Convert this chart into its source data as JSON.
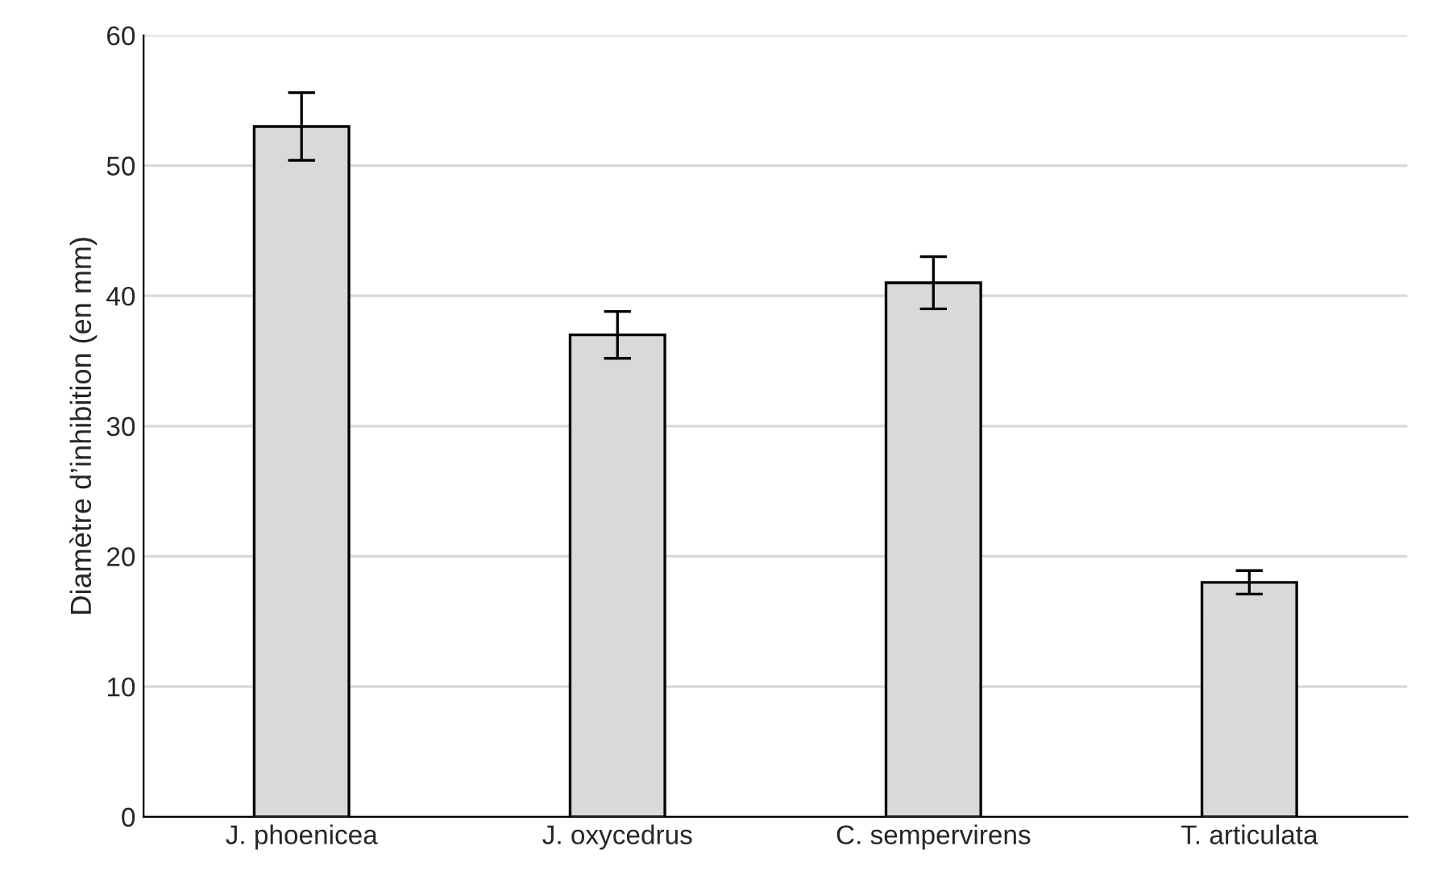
{
  "chart_data": {
    "type": "bar",
    "ylabel": "Diamètre d’inhibition (en mm)",
    "categories": [
      "J. phoenicea",
      "J. oxycedrus",
      "C. sempervirens",
      "T. articulata"
    ],
    "values": [
      53,
      37,
      41,
      18
    ],
    "errors": [
      2.6,
      1.8,
      2,
      0.9
    ],
    "color": "#d9d9d9",
    "ylim": [
      0,
      60
    ],
    "yticks": [
      0,
      10,
      20,
      30,
      40,
      50,
      60
    ],
    "grid": "y"
  }
}
